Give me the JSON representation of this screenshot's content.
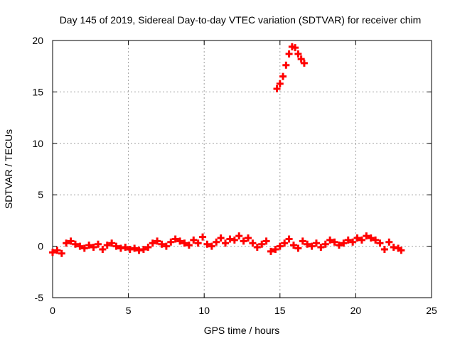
{
  "chart_data": {
    "type": "scatter",
    "title": "Day 145 of 2019, Sidereal Day-to-day VTEC variation (SDTVAR) for receiver chim",
    "xlabel": "GPS time / hours",
    "ylabel": "SDTVAR / TECUs",
    "xlim": [
      0,
      25
    ],
    "ylim": [
      -5,
      20
    ],
    "xticks": [
      "0",
      "5",
      "10",
      "15",
      "20",
      "25"
    ],
    "yticks": [
      "-5",
      "0",
      "5",
      "10",
      "15",
      "20"
    ],
    "grid": true,
    "marker": "plus",
    "color": "#ff0000",
    "series": [
      {
        "name": "SDTVAR",
        "x": [
          0.0,
          0.3,
          0.6,
          0.9,
          1.2,
          1.5,
          1.8,
          2.1,
          2.4,
          2.7,
          3.0,
          3.3,
          3.6,
          3.9,
          4.2,
          4.5,
          4.8,
          5.1,
          5.4,
          5.7,
          6.0,
          6.3,
          6.6,
          6.9,
          7.2,
          7.5,
          7.8,
          8.1,
          8.4,
          8.7,
          9.0,
          9.3,
          9.6,
          9.9,
          10.2,
          10.5,
          10.8,
          11.1,
          11.4,
          11.7,
          12.0,
          12.3,
          12.6,
          12.9,
          13.2,
          13.5,
          13.8,
          14.1,
          14.4,
          14.7,
          15.0,
          15.3,
          15.6,
          15.9,
          16.2,
          16.5,
          16.8,
          17.1,
          17.4,
          17.7,
          18.0,
          18.3,
          18.6,
          18.9,
          19.2,
          19.5,
          19.8,
          20.1,
          20.4,
          20.7,
          21.0,
          21.3,
          21.6,
          21.9,
          22.2,
          22.5,
          22.8,
          23.0,
          14.8,
          15.0,
          15.2,
          15.4,
          15.6,
          15.8,
          16.0,
          16.2,
          16.4,
          16.6
        ],
        "y": [
          -0.6,
          -0.4,
          -0.7,
          0.3,
          0.5,
          0.2,
          0.0,
          -0.2,
          0.1,
          -0.1,
          0.2,
          -0.3,
          0.1,
          0.3,
          0.0,
          -0.2,
          -0.1,
          -0.3,
          -0.2,
          -0.4,
          -0.3,
          -0.1,
          0.3,
          0.5,
          0.2,
          0.0,
          0.4,
          0.7,
          0.5,
          0.3,
          0.1,
          0.6,
          0.3,
          0.9,
          0.2,
          0.0,
          0.4,
          0.8,
          0.3,
          0.7,
          0.6,
          1.0,
          0.5,
          0.8,
          0.3,
          -0.1,
          0.2,
          0.5,
          -0.5,
          -0.3,
          0.0,
          0.3,
          0.7,
          0.1,
          -0.2,
          0.5,
          0.2,
          0.0,
          0.3,
          -0.1,
          0.2,
          0.6,
          0.4,
          0.1,
          0.3,
          0.6,
          0.4,
          0.8,
          0.6,
          1.0,
          0.8,
          0.6,
          0.3,
          -0.3,
          0.4,
          -0.1,
          -0.2,
          -0.4,
          15.3,
          15.8,
          16.5,
          17.6,
          18.7,
          19.4,
          19.3,
          18.7,
          18.2,
          17.8
        ]
      }
    ]
  }
}
